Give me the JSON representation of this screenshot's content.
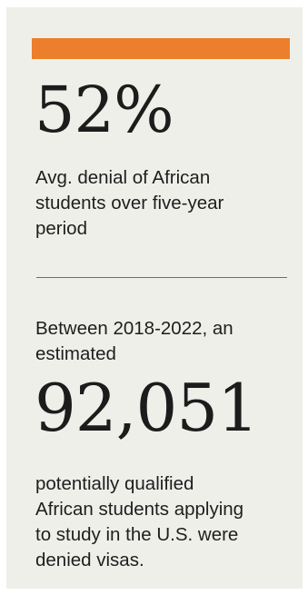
{
  "colors": {
    "accent": "#ec7f2b",
    "panel_background": "#efefea",
    "text": "#1e1e1e"
  },
  "stat_one": {
    "value": "52%",
    "description": "Avg. denial of African\nstudents over five-year\nperiod"
  },
  "stat_two": {
    "intro": "Between 2018-2022, an\nestimated",
    "value": "92,051",
    "description": "potentially qualified\nAfrican students applying\nto study in the U.S. were\ndenied visas."
  }
}
